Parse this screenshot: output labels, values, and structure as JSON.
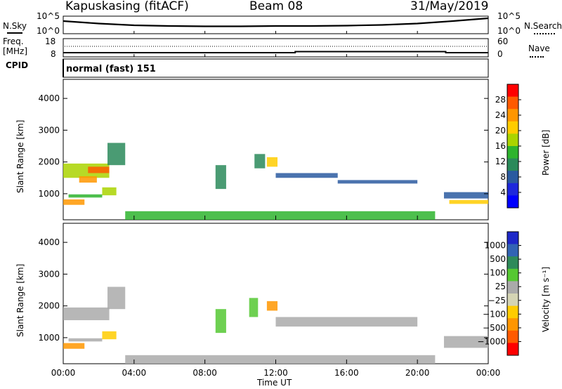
{
  "header": {
    "station": "Kapuskasing (fitACF)",
    "beam": "Beam 08",
    "date": "31/May/2019"
  },
  "noise_panel": {
    "left_label": "N.Sky",
    "right_label": "N.Search",
    "top_tick": "10^5",
    "bottom_tick": "10^0",
    "right_top_tick": "10^5",
    "right_bottom_tick": "10^0"
  },
  "freq_panel": {
    "left_label_1": "Freq.",
    "left_label_2": "[MHz]",
    "right_label": "Nave",
    "left_ticks": [
      "18",
      "8"
    ],
    "right_ticks": [
      "60",
      "0"
    ]
  },
  "cpid_panel": {
    "label": "CPID",
    "mode": "normal (fast) 151"
  },
  "power_panel": {
    "ylabel": "Slant Range [km]",
    "yticks": [
      "4000",
      "3000",
      "2000",
      "1000"
    ],
    "cbar_label": "Power [dB]",
    "cbar_ticks": [
      "28",
      "24",
      "20",
      "16",
      "12",
      "8",
      "4"
    ],
    "cbar_colors": [
      "#ff0000",
      "#ff5a00",
      "#ff9600",
      "#ffcc00",
      "#aad400",
      "#2eb42e",
      "#2a8a5a",
      "#2a5aa0",
      "#1e28dc",
      "#0000ff"
    ]
  },
  "velocity_panel": {
    "ylabel": "Slant Range [km]",
    "yticks": [
      "4000",
      "3000",
      "2000",
      "1000"
    ],
    "cbar_label": "Velocity [m s⁻¹]",
    "cbar_ticks": [
      "1000",
      "500",
      "100",
      "25",
      "−25",
      "−100",
      "−500",
      "−1000"
    ],
    "cbar_colors": [
      "#1e28c8",
      "#3264b4",
      "#2e8a5a",
      "#55c832",
      "#aaaaaa",
      "#d4d4b4",
      "#ffcc00",
      "#ff9600",
      "#ff5a00",
      "#ff0000"
    ]
  },
  "xaxis": {
    "ticks": [
      "00:00",
      "04:00",
      "08:00",
      "12:00",
      "16:00",
      "20:00",
      "00:00"
    ],
    "label": "Time UT"
  },
  "chart_data": [
    {
      "type": "line",
      "name": "noise",
      "x_hours": [
        0,
        2,
        4,
        6,
        8,
        10,
        12,
        14,
        16,
        18,
        20,
        22,
        24
      ],
      "sky_level_log10": [
        3.6,
        2.9,
        2.4,
        2.2,
        2.1,
        2.1,
        2.2,
        2.2,
        2.3,
        2.5,
        2.9,
        3.6,
        4.4
      ],
      "ylim": [
        0,
        5
      ],
      "yscale": "log"
    },
    {
      "type": "line",
      "name": "frequency",
      "x_hours": [
        0,
        13.1,
        13.1,
        21.6,
        21.6,
        24
      ],
      "freq_mhz": [
        10.3,
        10.3,
        10.9,
        10.9,
        10.3,
        10.3
      ],
      "nave": 28,
      "ylim": [
        8,
        18
      ]
    },
    {
      "type": "heatmap",
      "name": "power",
      "xlim": [
        0,
        24
      ],
      "ylim": [
        180,
        4600
      ],
      "zlim": [
        0,
        30
      ],
      "patches": [
        {
          "t0": 0.0,
          "t1": 2.6,
          "r0": 1500,
          "r1": 1950,
          "v": 16
        },
        {
          "t0": 1.4,
          "t1": 2.6,
          "r0": 1650,
          "r1": 1850,
          "v": 26
        },
        {
          "t0": 0.9,
          "t1": 1.9,
          "r0": 1350,
          "r1": 1550,
          "v": 22
        },
        {
          "t0": 2.5,
          "t1": 3.5,
          "r0": 1900,
          "r1": 2600,
          "v": 10
        },
        {
          "t0": 0.0,
          "t1": 1.2,
          "r0": 650,
          "r1": 820,
          "v": 22
        },
        {
          "t0": 0.3,
          "t1": 2.2,
          "r0": 880,
          "r1": 980,
          "v": 12
        },
        {
          "t0": 2.2,
          "t1": 3.0,
          "r0": 950,
          "r1": 1200,
          "v": 16
        },
        {
          "t0": 8.6,
          "t1": 9.2,
          "r0": 1150,
          "r1": 1900,
          "v": 10
        },
        {
          "t0": 10.8,
          "t1": 11.4,
          "r0": 1800,
          "r1": 2250,
          "v": 10
        },
        {
          "t0": 11.5,
          "t1": 12.1,
          "r0": 1850,
          "r1": 2150,
          "v": 18
        },
        {
          "t0": 12.0,
          "t1": 15.5,
          "r0": 1500,
          "r1": 1650,
          "v": 8
        },
        {
          "t0": 15.5,
          "t1": 20.0,
          "r0": 1320,
          "r1": 1430,
          "v": 7
        },
        {
          "t0": 21.5,
          "t1": 24.0,
          "r0": 850,
          "r1": 1050,
          "v": 8
        },
        {
          "t0": 21.8,
          "t1": 24.0,
          "r0": 680,
          "r1": 800,
          "v": 20
        },
        {
          "t0": 3.5,
          "t1": 21.0,
          "r0": 180,
          "r1": 450,
          "v": 14
        }
      ]
    },
    {
      "type": "heatmap",
      "name": "velocity",
      "xlim": [
        0,
        24
      ],
      "ylim": [
        180,
        4600
      ],
      "zlim": [
        -1000,
        1000
      ],
      "patches": [
        {
          "t0": 0.0,
          "t1": 2.6,
          "r0": 1550,
          "r1": 1950,
          "v": 0
        },
        {
          "t0": 2.5,
          "t1": 3.5,
          "r0": 1900,
          "r1": 2600,
          "v": 0
        },
        {
          "t0": 0.0,
          "t1": 1.2,
          "r0": 650,
          "r1": 830,
          "v": -120
        },
        {
          "t0": 0.3,
          "t1": 2.2,
          "r0": 880,
          "r1": 980,
          "v": 0
        },
        {
          "t0": 2.2,
          "t1": 3.0,
          "r0": 950,
          "r1": 1200,
          "v": -80
        },
        {
          "t0": 8.6,
          "t1": 9.2,
          "r0": 1150,
          "r1": 1900,
          "v": 60
        },
        {
          "t0": 10.5,
          "t1": 11.0,
          "r0": 1650,
          "r1": 2250,
          "v": 60
        },
        {
          "t0": 11.5,
          "t1": 12.1,
          "r0": 1850,
          "r1": 2150,
          "v": -150
        },
        {
          "t0": 12.0,
          "t1": 20.0,
          "r0": 1350,
          "r1": 1650,
          "v": 0
        },
        {
          "t0": 21.5,
          "t1": 24.0,
          "r0": 680,
          "r1": 1050,
          "v": 0
        },
        {
          "t0": 3.5,
          "t1": 21.0,
          "r0": 180,
          "r1": 450,
          "v": 40
        }
      ]
    }
  ]
}
